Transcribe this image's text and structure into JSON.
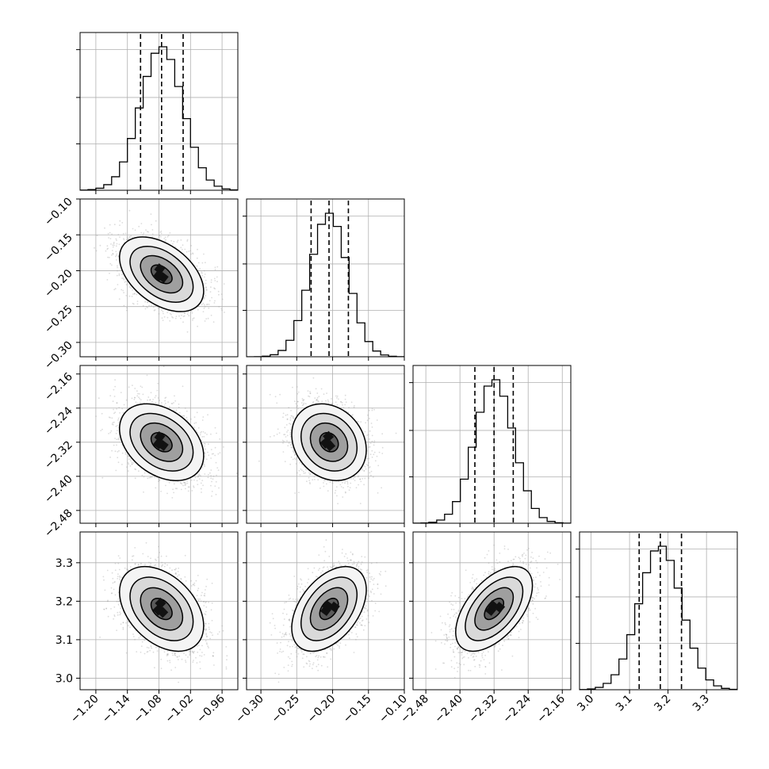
{
  "chart_data": {
    "type": "corner",
    "grid": true,
    "parameters": [
      {
        "range": [
          -1.23,
          -0.93
        ],
        "ticks": [
          "−1.20",
          "−1.14",
          "−1.08",
          "−1.02",
          "−0.96"
        ],
        "tick_values": [
          -1.2,
          -1.14,
          -1.08,
          -1.02,
          -0.96
        ],
        "quantiles": [
          -1.115,
          -1.075,
          -1.034
        ],
        "mean": -1.075,
        "sd": 0.04,
        "hist_grid": [
          -1.2,
          -1.14,
          -1.08,
          -1.02,
          -0.96
        ]
      },
      {
        "range": [
          -0.32,
          -0.1
        ],
        "ticks": [
          "−0.30",
          "−0.25",
          "−0.20",
          "−0.15",
          "−0.10"
        ],
        "tick_values": [
          -0.3,
          -0.25,
          -0.2,
          -0.15,
          -0.1
        ],
        "quantiles": [
          -0.23,
          -0.205,
          -0.178
        ],
        "mean": -0.205,
        "sd": 0.026,
        "hist_grid": [
          -0.3,
          -0.25,
          -0.2,
          -0.15
        ]
      },
      {
        "range": [
          -2.51,
          -2.14
        ],
        "ticks": [
          "−2.48",
          "−2.40",
          "−2.32",
          "−2.24",
          "−2.16"
        ],
        "tick_values": [
          -2.48,
          -2.4,
          -2.32,
          -2.24,
          -2.16
        ],
        "quantiles": [
          -2.365,
          -2.32,
          -2.275
        ],
        "mean": -2.32,
        "sd": 0.045,
        "hist_grid": [
          -2.4,
          -2.32,
          -2.24,
          -2.16
        ]
      },
      {
        "range": [
          2.97,
          3.38
        ],
        "ticks": [
          "3.0",
          "3.1",
          "3.2",
          "3.3"
        ],
        "tick_values": [
          3.0,
          3.1,
          3.2,
          3.3
        ],
        "quantiles": [
          3.125,
          3.18,
          3.235
        ],
        "mean": 3.18,
        "sd": 0.055,
        "hist_grid": [
          3.0,
          3.1,
          3.2,
          3.3
        ]
      }
    ],
    "correlations": {
      "1-0": -0.45,
      "2-0": -0.35,
      "2-1": -0.2,
      "3-0": -0.4,
      "3-1": 0.45,
      "3-2": 0.55
    },
    "contour_levels_sigma": [
      0.5,
      1.0,
      1.5,
      2.0
    ],
    "colors": {
      "points": "#9a9a9a",
      "density_dark": "#000000",
      "lines": "#000000",
      "grid": "#b0b0b0"
    }
  }
}
